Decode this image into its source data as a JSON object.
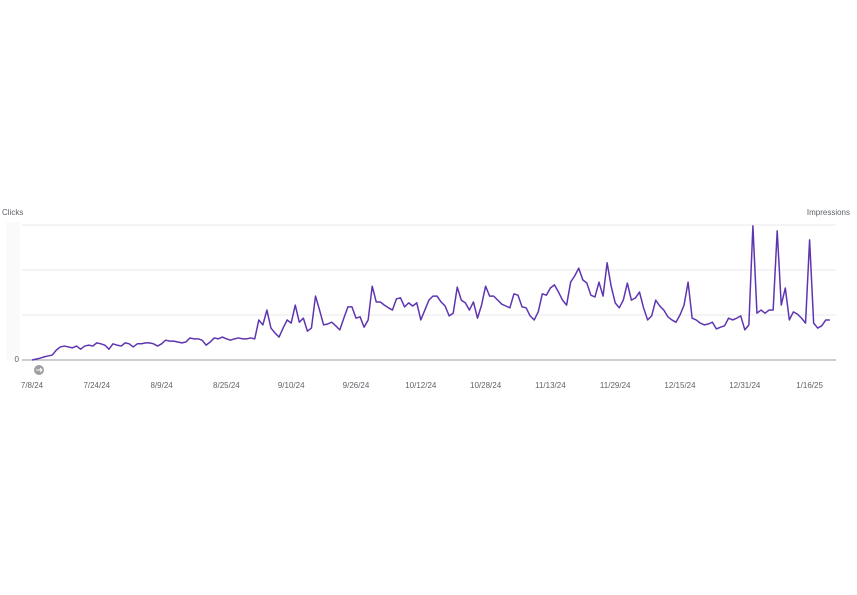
{
  "chart_data": {
    "type": "line",
    "y_label": "Clicks",
    "y2_label": "Impressions",
    "categories": [
      "7/8/24",
      null,
      null,
      null,
      null,
      null,
      null,
      null,
      null,
      null,
      null,
      null,
      null,
      null,
      null,
      null,
      "7/24/24",
      null,
      null,
      null,
      null,
      null,
      null,
      null,
      null,
      null,
      null,
      null,
      null,
      null,
      null,
      null,
      "8/9/24",
      null,
      null,
      null,
      null,
      null,
      null,
      null,
      null,
      null,
      null,
      null,
      null,
      null,
      null,
      null,
      "8/25/24",
      null,
      null,
      null,
      null,
      null,
      null,
      null,
      null,
      null,
      null,
      null,
      null,
      null,
      null,
      null,
      "9/10/24",
      null,
      null,
      null,
      null,
      null,
      null,
      null,
      null,
      null,
      null,
      null,
      null,
      null,
      null,
      null,
      "9/26/24",
      null,
      null,
      null,
      null,
      null,
      null,
      null,
      null,
      null,
      null,
      null,
      null,
      null,
      null,
      null,
      "10/12/24",
      null,
      null,
      null,
      null,
      null,
      null,
      null,
      null,
      null,
      null,
      null,
      null,
      null,
      null,
      null,
      "10/28/24",
      null,
      null,
      null,
      null,
      null,
      null,
      null,
      null,
      null,
      null,
      null,
      null,
      null,
      null,
      null,
      "11/13/24",
      null,
      null,
      null,
      null,
      null,
      null,
      null,
      null,
      null,
      null,
      null,
      null,
      null,
      null,
      null,
      "11/29/24",
      null,
      null,
      null,
      null,
      null,
      null,
      null,
      null,
      null,
      null,
      null,
      null,
      null,
      null,
      null,
      "12/15/24",
      null,
      null,
      null,
      null,
      null,
      null,
      null,
      null,
      null,
      null,
      null,
      null,
      null,
      null,
      null,
      "12/31/24",
      null,
      null,
      null,
      null,
      null,
      null,
      null,
      null,
      null,
      null,
      null,
      null,
      null,
      null,
      null,
      "1/16/25",
      null,
      null,
      null,
      null,
      null
    ],
    "series": [
      {
        "name": "Clicks",
        "color": "#5e35b1",
        "values": [
          0,
          0.02,
          0.04,
          0.07,
          0.09,
          0.11,
          0.22,
          0.29,
          0.31,
          0.29,
          0.27,
          0.31,
          0.24,
          0.31,
          0.33,
          0.31,
          0.38,
          0.36,
          0.33,
          0.24,
          0.36,
          0.33,
          0.31,
          0.38,
          0.36,
          0.29,
          0.36,
          0.36,
          0.38,
          0.38,
          0.36,
          0.31,
          0.36,
          0.44,
          0.42,
          0.42,
          0.4,
          0.38,
          0.4,
          0.49,
          0.47,
          0.47,
          0.44,
          0.33,
          0.4,
          0.49,
          0.47,
          0.51,
          0.47,
          0.44,
          0.47,
          0.49,
          0.47,
          0.47,
          0.49,
          0.47,
          0.89,
          0.78,
          1.11,
          0.71,
          0.6,
          0.51,
          0.71,
          0.89,
          0.82,
          1.22,
          0.84,
          0.93,
          0.64,
          0.71,
          1.42,
          1.11,
          0.78,
          0.8,
          0.84,
          0.76,
          0.67,
          0.93,
          1.18,
          1.18,
          0.93,
          0.96,
          0.73,
          0.89,
          1.64,
          1.29,
          1.29,
          1.22,
          1.16,
          1.11,
          1.36,
          1.38,
          1.18,
          1.27,
          1.2,
          1.27,
          0.89,
          1.11,
          1.33,
          1.42,
          1.42,
          1.29,
          1.2,
          0.98,
          1.04,
          1.62,
          1.33,
          1.27,
          1.11,
          1.29,
          0.93,
          1.22,
          1.64,
          1.42,
          1.42,
          1.33,
          1.24,
          1.2,
          1.16,
          1.47,
          1.44,
          1.18,
          1.16,
          0.98,
          0.89,
          1.07,
          1.47,
          1.44,
          1.6,
          1.67,
          1.51,
          1.33,
          1.22,
          1.73,
          1.87,
          2.04,
          1.78,
          1.71,
          1.44,
          1.4,
          1.73,
          1.42,
          2.16,
          1.64,
          1.27,
          1.16,
          1.33,
          1.71,
          1.33,
          1.38,
          1.51,
          1.16,
          0.89,
          0.98,
          1.33,
          1.2,
          1.11,
          0.96,
          0.89,
          0.84,
          1,
          1.22,
          1.73,
          0.93,
          0.89,
          0.82,
          0.78,
          0.8,
          0.84,
          0.69,
          0.73,
          0.76,
          0.93,
          0.89,
          0.93,
          0.98,
          0.67,
          0.78,
          2.98,
          1.04,
          1.11,
          1.04,
          1.11,
          1.11,
          2.87,
          1.22,
          1.6,
          0.89,
          1.07,
          1.02,
          0.93,
          0.82,
          2.67,
          0.82,
          0.71,
          0.76,
          0.89,
          0.89
        ]
      }
    ],
    "ylim": [
      0,
      3
    ],
    "yticks": [
      0,
      {
        "value": 1,
        "label": null
      },
      {
        "value": 2,
        "label": null
      },
      {
        "value": 3,
        "label": null
      }
    ],
    "grid": true
  }
}
